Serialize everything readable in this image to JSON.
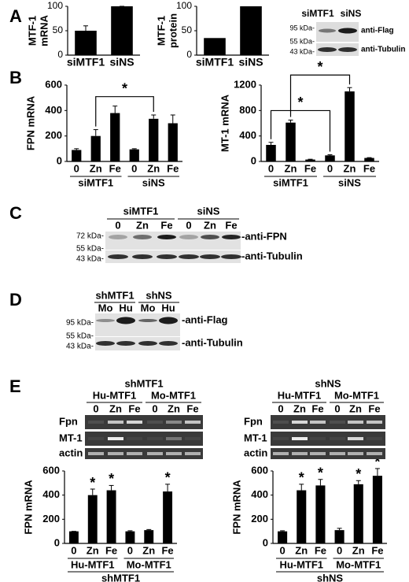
{
  "panel_labels": [
    "A",
    "B",
    "C",
    "D",
    "E"
  ],
  "chart_data": [
    {
      "type": "bar",
      "ylabel": [
        "MTF-1",
        "mRNA"
      ],
      "categories": [
        "siMTF1",
        "siNS"
      ],
      "values": [
        50,
        100
      ],
      "errors": [
        10,
        0
      ],
      "ylim": [
        0,
        100
      ],
      "yticks": [
        0,
        50,
        100
      ]
    },
    {
      "type": "bar",
      "ylabel": [
        "MTF-1",
        "protein"
      ],
      "categories": [
        "siMTF1",
        "siNS"
      ],
      "values": [
        35,
        100
      ],
      "ylim": [
        0,
        100
      ],
      "yticks": [
        0,
        50,
        100
      ]
    },
    {
      "type": "bar",
      "ylabel": "FPN mRNA",
      "categories": [
        "0",
        "Zn",
        "Fe",
        "0",
        "Zn",
        "Fe"
      ],
      "groups": [
        "siMTF1",
        "siNS"
      ],
      "values": [
        90,
        200,
        380,
        95,
        335,
        300
      ],
      "errors": [
        10,
        50,
        55,
        5,
        30,
        65
      ],
      "ylim": [
        0,
        600
      ],
      "yticks": [
        0,
        200,
        400,
        600
      ],
      "brackets": [
        {
          "text": "*",
          "from": 1,
          "to": 4
        }
      ]
    },
    {
      "type": "bar",
      "ylabel": "MT-1 mRNA",
      "categories": [
        "0",
        "Zn",
        "Fe",
        "0",
        "Zn",
        "Fe"
      ],
      "groups": [
        "siMTF1",
        "siNS"
      ],
      "values": [
        260,
        610,
        30,
        95,
        1100,
        55
      ],
      "errors": [
        40,
        40,
        5,
        10,
        60,
        5
      ],
      "ylim": [
        0,
        1200
      ],
      "yticks": [
        0,
        400,
        800,
        1200
      ],
      "brackets": [
        {
          "text": "*",
          "from": 0,
          "to": 3
        },
        {
          "text": "*",
          "from": 1,
          "to": 4
        }
      ]
    },
    {
      "type": "bar",
      "ylabel": "FPN mRNA",
      "categories": [
        "0",
        "Zn",
        "Fe",
        "0",
        "Zn",
        "Fe"
      ],
      "groups": [
        "Hu-MTF1",
        "Mo-MTF1"
      ],
      "xlabel": "shMTF1",
      "values": [
        100,
        400,
        440,
        100,
        110,
        430
      ],
      "errors": [
        0,
        50,
        40,
        5,
        5,
        60
      ],
      "ylim": [
        0,
        600
      ],
      "yticks": [
        0,
        200,
        400,
        600
      ],
      "annotations": [
        {
          "text": "*",
          "category": 1
        },
        {
          "text": "*",
          "category": 2
        },
        {
          "text": "*",
          "category": 5
        }
      ]
    },
    {
      "type": "bar",
      "ylabel": "FPN mRNA",
      "categories": [
        "0",
        "Zn",
        "Fe",
        "0",
        "Zn",
        "Fe"
      ],
      "groups": [
        "Hu-MTF1",
        "Mo-MTF1"
      ],
      "xlabel": "shNS",
      "values": [
        100,
        440,
        480,
        110,
        490,
        560
      ],
      "errors": [
        5,
        50,
        50,
        15,
        30,
        60
      ],
      "ylim": [
        0,
        600
      ],
      "yticks": [
        0,
        200,
        400,
        600
      ],
      "annotations": [
        {
          "text": "*",
          "category": 1
        },
        {
          "text": "*",
          "category": 2
        },
        {
          "text": "*",
          "category": 4
        },
        {
          "text": "*",
          "category": 5
        }
      ]
    }
  ],
  "blots": {
    "A": {
      "columns": [
        "siMTF1",
        "siNS"
      ],
      "markers": [
        "95 kDa-",
        "55 kDa-",
        "43 kDa-"
      ],
      "rows": [
        "anti-Flag",
        "anti-Tubulin"
      ]
    },
    "C": {
      "groups": [
        "siMTF1",
        "siNS"
      ],
      "lanes": [
        "0",
        "Zn",
        "Fe",
        "0",
        "Zn",
        "Fe"
      ],
      "markers": [
        "72 kDa-",
        "55 kDa-",
        "43 kDa-"
      ],
      "rows": [
        "-anti-FPN",
        "-anti-Tubulin"
      ]
    },
    "D": {
      "groups": [
        "shMTF1",
        "shNS"
      ],
      "lanes": [
        "Mo",
        "Hu",
        "Mo",
        "Hu"
      ],
      "markers": [
        "95 kDa-",
        "55 kDa-",
        "43 kDa-"
      ],
      "rows": [
        "-anti-Flag",
        "-anti-Tubulin"
      ]
    }
  },
  "gels": [
    {
      "title": "shMTF1",
      "groups": [
        "Hu-MTF1",
        "Mo-MTF1"
      ],
      "lanes": [
        "0",
        "Zn",
        "Fe",
        "0",
        "Zn",
        "Fe"
      ],
      "rows": [
        "Fpn",
        "MT-1",
        "actin"
      ]
    },
    {
      "title": "shNS",
      "groups": [
        "Hu-MTF1",
        "Mo-MTF1"
      ],
      "lanes": [
        "0",
        "Zn",
        "Fe",
        "0",
        "Zn",
        "Fe"
      ],
      "rows": [
        "Fpn",
        "MT-1",
        "actin"
      ]
    }
  ]
}
